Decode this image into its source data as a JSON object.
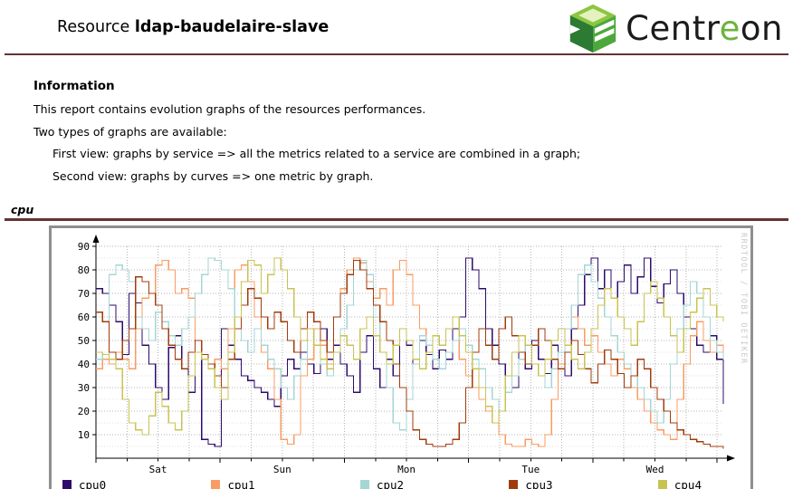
{
  "colors": {
    "maroon_rule": "#643232",
    "logo_green": "#6cb33f",
    "graph_border": "#8f8f8f",
    "grid_major": "#b5b5b5",
    "grid_minor": "#e0e0e0"
  },
  "header": {
    "title_prefix": "Resource",
    "resource_name": "ldap-baudelaire-slave",
    "logo_part1": "Centr",
    "logo_accent": "e",
    "logo_part2": "on"
  },
  "info": {
    "heading": "Information",
    "line1": "This report contains evolution graphs of the resources performances.",
    "line2": "Two types of graphs are available:",
    "line3": "First view: graphs by service => all the metrics related to a service are combined in a graph;",
    "line4": "Second view: graphs by curves => one metric by graph."
  },
  "section": {
    "label": "cpu"
  },
  "chart_data": {
    "type": "line",
    "title": "",
    "xlabel": "",
    "ylabel": "",
    "ylim": [
      0,
      92
    ],
    "yticks": [
      10,
      20,
      30,
      40,
      50,
      60,
      70,
      80,
      90
    ],
    "grid": true,
    "legend_position": "bottom",
    "watermark": "RRDTOOL / TOBI OETIKER",
    "x_range_days": 5.05,
    "day_labels": [
      "Sat",
      "Sun",
      "Mon",
      "Tue",
      "Wed"
    ],
    "day_label_positions": [
      0.5,
      1.5,
      2.5,
      3.5,
      4.5
    ],
    "minor_grid_step_days": 0.25,
    "series": [
      {
        "name": "cpu0",
        "color": "#2e0b6b",
        "values": [
          72,
          70,
          65,
          58,
          44,
          70,
          66,
          48,
          40,
          30,
          25,
          47,
          52,
          38,
          28,
          45,
          8,
          6,
          5,
          55,
          48,
          42,
          35,
          33,
          30,
          28,
          25,
          22,
          35,
          42,
          38,
          45,
          40,
          36,
          55,
          42,
          48,
          40,
          35,
          28,
          45,
          52,
          38,
          30,
          42,
          35,
          55,
          48,
          40,
          50,
          44,
          38,
          46,
          42,
          55,
          60,
          85,
          80,
          72,
          55,
          48,
          40,
          35,
          30,
          45,
          38,
          50,
          42,
          36,
          48,
          40,
          35,
          55,
          65,
          78,
          85,
          72,
          80,
          68,
          75,
          82,
          70,
          77,
          85,
          73,
          66,
          74,
          80,
          70,
          60,
          55,
          48,
          45,
          52,
          42,
          23
        ]
      },
      {
        "name": "cpu1",
        "color": "#f99c63",
        "values": [
          38,
          42,
          40,
          45,
          42,
          38,
          55,
          68,
          70,
          82,
          84,
          80,
          70,
          72,
          68,
          50,
          44,
          40,
          42,
          38,
          55,
          80,
          82,
          75,
          60,
          45,
          38,
          25,
          8,
          6,
          10,
          35,
          42,
          55,
          48,
          40,
          60,
          72,
          80,
          85,
          83,
          75,
          68,
          72,
          65,
          80,
          84,
          78,
          65,
          55,
          48,
          42,
          38,
          45,
          50,
          42,
          35,
          30,
          25,
          20,
          15,
          10,
          6,
          5,
          5,
          8,
          6,
          5,
          10,
          25,
          40,
          55,
          60,
          55,
          48,
          52,
          45,
          40,
          35,
          42,
          38,
          30,
          25,
          20,
          15,
          12,
          10,
          8,
          25,
          40,
          52,
          58,
          50,
          45,
          48,
          44
        ]
      },
      {
        "name": "cpu2",
        "color": "#a5d6d4",
        "values": [
          42,
          44,
          78,
          82,
          80,
          75,
          60,
          55,
          50,
          62,
          58,
          52,
          48,
          55,
          60,
          70,
          78,
          85,
          84,
          80,
          72,
          60,
          50,
          45,
          55,
          48,
          42,
          38,
          30,
          25,
          35,
          42,
          55,
          48,
          40,
          35,
          45,
          55,
          65,
          80,
          84,
          78,
          60,
          45,
          30,
          15,
          12,
          25,
          40,
          52,
          48,
          42,
          38,
          45,
          50,
          55,
          48,
          42,
          38,
          30,
          25,
          20,
          28,
          35,
          42,
          48,
          40,
          35,
          30,
          38,
          45,
          55,
          65,
          78,
          82,
          75,
          68,
          60,
          52,
          45,
          40,
          35,
          30,
          25,
          20,
          15,
          25,
          40,
          55,
          65,
          75,
          70,
          60,
          50,
          45,
          42
        ]
      },
      {
        "name": "cpu3",
        "color": "#a03c0c",
        "values": [
          62,
          58,
          45,
          42,
          50,
          55,
          77,
          75,
          70,
          65,
          55,
          48,
          42,
          38,
          45,
          50,
          44,
          40,
          35,
          30,
          42,
          55,
          65,
          72,
          68,
          60,
          55,
          62,
          58,
          50,
          45,
          55,
          62,
          58,
          50,
          45,
          60,
          70,
          78,
          84,
          80,
          72,
          65,
          58,
          50,
          40,
          30,
          20,
          12,
          8,
          6,
          5,
          5,
          6,
          8,
          15,
          30,
          45,
          55,
          48,
          42,
          55,
          60,
          52,
          45,
          40,
          48,
          55,
          50,
          42,
          38,
          45,
          50,
          44,
          38,
          32,
          40,
          46,
          42,
          36,
          30,
          35,
          42,
          38,
          30,
          25,
          20,
          15,
          12,
          10,
          8,
          7,
          6,
          5,
          5,
          4
        ]
      },
      {
        "name": "cpu4",
        "color": "#c9c353",
        "values": [
          45,
          44,
          42,
          38,
          25,
          15,
          12,
          10,
          18,
          28,
          22,
          15,
          12,
          20,
          35,
          45,
          42,
          38,
          30,
          25,
          45,
          60,
          75,
          84,
          82,
          70,
          78,
          85,
          80,
          72,
          60,
          50,
          55,
          48,
          42,
          38,
          45,
          52,
          48,
          42,
          55,
          60,
          52,
          45,
          40,
          48,
          55,
          50,
          42,
          38,
          45,
          52,
          48,
          55,
          60,
          52,
          45,
          38,
          30,
          22,
          15,
          20,
          35,
          45,
          52,
          48,
          40,
          35,
          42,
          50,
          55,
          48,
          42,
          38,
          45,
          55,
          65,
          72,
          68,
          60,
          55,
          48,
          58,
          70,
          75,
          68,
          60,
          52,
          45,
          55,
          62,
          68,
          72,
          65,
          60,
          58
        ]
      }
    ]
  }
}
